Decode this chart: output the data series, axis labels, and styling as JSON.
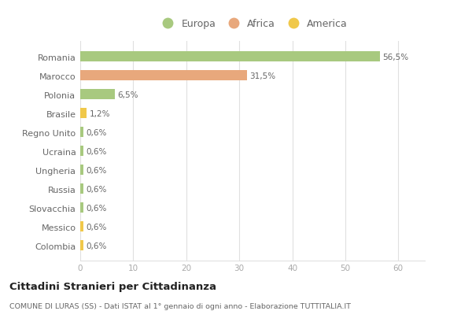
{
  "countries": [
    "Romania",
    "Marocco",
    "Polonia",
    "Brasile",
    "Regno Unito",
    "Ucraina",
    "Ungheria",
    "Russia",
    "Slovacchia",
    "Messico",
    "Colombia"
  ],
  "values": [
    56.5,
    31.5,
    6.5,
    1.2,
    0.6,
    0.6,
    0.6,
    0.6,
    0.6,
    0.6,
    0.6
  ],
  "labels": [
    "56,5%",
    "31,5%",
    "6,5%",
    "1,2%",
    "0,6%",
    "0,6%",
    "0,6%",
    "0,6%",
    "0,6%",
    "0,6%",
    "0,6%"
  ],
  "continents": [
    "Europa",
    "Africa",
    "Europa",
    "America",
    "Europa",
    "Europa",
    "Europa",
    "Europa",
    "Europa",
    "America",
    "America"
  ],
  "colors": {
    "Europa": "#a8c97f",
    "Africa": "#e8a87c",
    "America": "#f0c84a"
  },
  "legend_order": [
    "Europa",
    "Africa",
    "America"
  ],
  "xlim": [
    0,
    65
  ],
  "xticks": [
    0,
    10,
    20,
    30,
    40,
    50,
    60
  ],
  "title": "Cittadini Stranieri per Cittadinanza",
  "subtitle": "COMUNE DI LURAS (SS) - Dati ISTAT al 1° gennaio di ogni anno - Elaborazione TUTTITALIA.IT",
  "background_color": "#ffffff",
  "grid_color": "#e0e0e0",
  "bar_height": 0.55,
  "label_color": "#666666",
  "ytick_color": "#666666",
  "xtick_color": "#aaaaaa"
}
